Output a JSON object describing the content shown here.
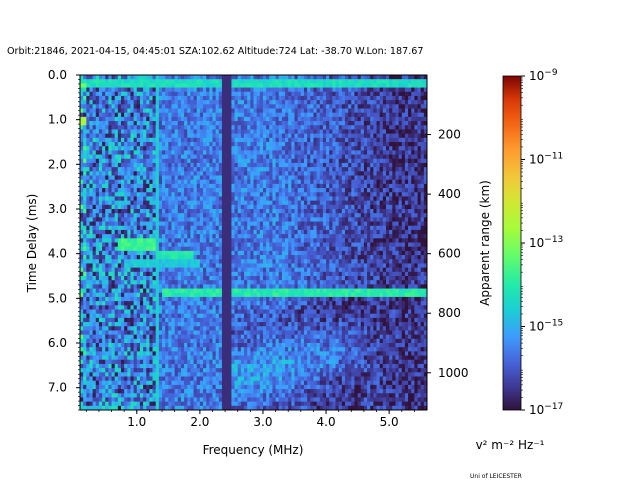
{
  "chart_data": {
    "type": "heatmap",
    "title": "Orbit:21846, 2021-04-15, 04:45:01 SZA:102.62 Altitude:724 Lat: -38.70 W.Lon: 187.67",
    "xlabel": "Frequency (MHz)",
    "ylabel": "Time Delay (ms)",
    "y2label": "Apparent range (km)",
    "xlim": [
      0.1,
      5.6
    ],
    "ylim": [
      7.5,
      0.0
    ],
    "xticks": [
      1.0,
      2.0,
      3.0,
      4.0,
      5.0
    ],
    "xtick_labels": [
      "1.0",
      "2.0",
      "3.0",
      "4.0",
      "5.0"
    ],
    "yticks": [
      0.0,
      1.0,
      2.0,
      3.0,
      4.0,
      5.0,
      6.0,
      7.0
    ],
    "ytick_labels": [
      "0.0",
      "1.0",
      "2.0",
      "3.0",
      "4.0",
      "5.0",
      "6.0",
      "7.0"
    ],
    "y2ticks": [
      200,
      400,
      600,
      800,
      1000
    ],
    "y2tick_labels": [
      "200",
      "400",
      "600",
      "800",
      "1000"
    ],
    "colorbar": {
      "label": "v² m⁻² Hz⁻¹",
      "scale": "log",
      "range": [
        1e-17,
        1e-09
      ],
      "ticks": [
        1e-17,
        1e-15,
        1e-13,
        1e-11,
        1e-09
      ],
      "tick_exponents": [
        "−17",
        "−15",
        "−13",
        "−11",
        "−9"
      ],
      "tick_base": "10",
      "colormap": "turbo"
    },
    "grid": false,
    "bins": {
      "time_rows": 80,
      "freq_cols": 110
    },
    "features": [
      {
        "kind": "horizontal_band",
        "time_ms": 0.2,
        "freq_range_mhz": [
          0.1,
          5.6
        ],
        "log_power": -14.3
      },
      {
        "kind": "horizontal_band",
        "time_ms": 1.0,
        "freq_range_mhz": [
          0.1,
          0.2
        ],
        "log_power": -12.6
      },
      {
        "kind": "horizontal_band",
        "time_ms": 3.8,
        "freq_range_mhz": [
          0.7,
          1.3
        ],
        "log_power": -13.7
      },
      {
        "kind": "horizontal_band",
        "time_ms": 4.0,
        "freq_range_mhz": [
          1.3,
          1.9
        ],
        "log_power": -14.1
      },
      {
        "kind": "horizontal_band",
        "time_ms": 4.2,
        "freq_range_mhz": [
          0.8,
          2.0
        ],
        "log_power": -14.7
      },
      {
        "kind": "horizontal_band",
        "time_ms": 4.9,
        "freq_range_mhz": [
          1.4,
          5.6
        ],
        "log_power": -14.0
      },
      {
        "kind": "vertical_band",
        "freq_mhz": 1.33,
        "log_power": -14.6
      },
      {
        "kind": "vertical_band",
        "freq_mhz": 2.37,
        "log_power": -16.6
      },
      {
        "kind": "vertical_band",
        "freq_mhz": 2.45,
        "log_power": -16.6
      }
    ]
  },
  "credit": "Uni of LEICESTER"
}
